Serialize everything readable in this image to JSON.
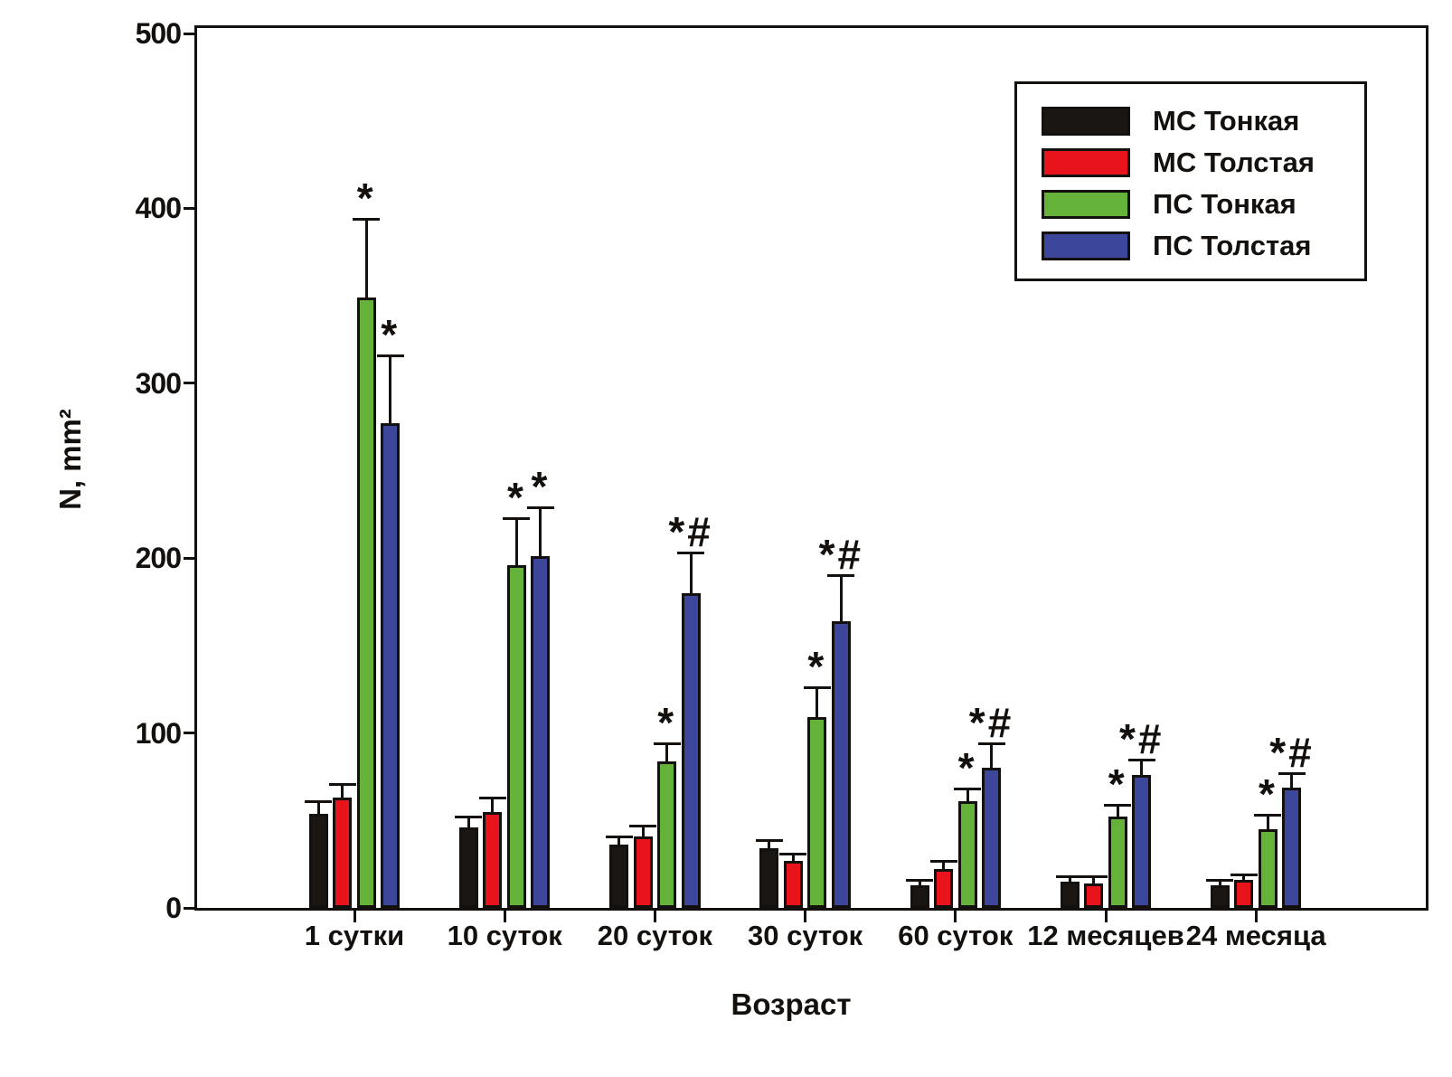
{
  "figure": {
    "background": "#ffffff",
    "frame_color": "#14100d"
  },
  "chart_data": {
    "type": "bar",
    "title": "",
    "xlabel": "Возраст",
    "ylabel": "N, mm²",
    "ylim": [
      0,
      500
    ],
    "yticks": [
      0,
      100,
      200,
      300,
      400,
      500
    ],
    "grid": false,
    "legend_position": "top-right-inside",
    "categories": [
      "1 сутки",
      "10 суток",
      "20 суток",
      "30 суток",
      "60 суток",
      "12 месяцев",
      "24 месяца"
    ],
    "series": [
      {
        "name": "МС Тонкая",
        "color": "#1a1613",
        "values": [
          54,
          46,
          36,
          34,
          13,
          15,
          13
        ],
        "errors": [
          6,
          5,
          4,
          4,
          2,
          2,
          2
        ],
        "annotations": [
          "",
          "",
          "",
          "",
          "",
          "",
          ""
        ]
      },
      {
        "name": "МС Толстая",
        "color": "#e8131b",
        "values": [
          63,
          55,
          41,
          27,
          22,
          14,
          16
        ],
        "errors": [
          7,
          7,
          5,
          3,
          4,
          3,
          2
        ],
        "annotations": [
          "",
          "",
          "",
          "",
          "",
          "",
          ""
        ]
      },
      {
        "name": "ПС Тонкая",
        "color": "#64b23a",
        "values": [
          349,
          196,
          84,
          109,
          61,
          52,
          45
        ],
        "errors": [
          44,
          26,
          9,
          16,
          6,
          6,
          7
        ],
        "annotations": [
          "*",
          "*",
          "*",
          "*",
          "*",
          "*",
          "*"
        ]
      },
      {
        "name": "ПС Толстая",
        "color": "#3c469b",
        "values": [
          277,
          201,
          180,
          164,
          80,
          76,
          69
        ],
        "errors": [
          38,
          27,
          22,
          25,
          13,
          8,
          7
        ],
        "annotations": [
          "*",
          "*",
          "*#",
          "*#",
          "*#",
          "*#",
          "*#"
        ]
      }
    ]
  }
}
